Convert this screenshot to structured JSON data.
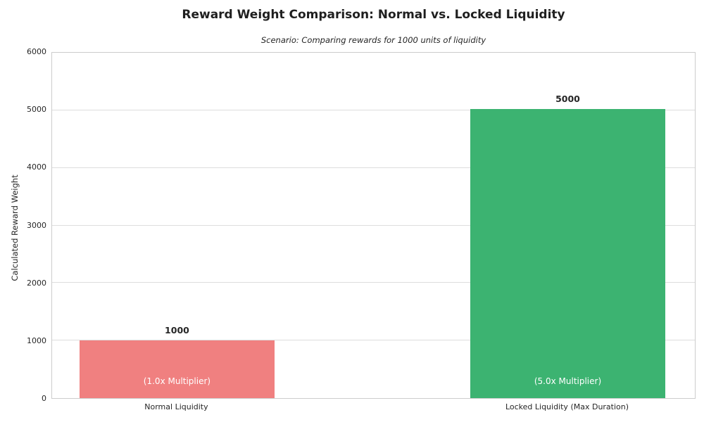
{
  "chart_data": {
    "type": "bar",
    "title": "Reward Weight Comparison: Normal vs. Locked Liquidity",
    "subtitle": "Scenario: Comparing rewards for 1000 units of liquidity",
    "ylabel": "Calculated Reward Weight",
    "xlabel": "",
    "categories": [
      "Normal Liquidity",
      "Locked Liquidity (Max Duration)"
    ],
    "values": [
      1000,
      5000
    ],
    "value_labels": [
      "1000",
      "5000"
    ],
    "bar_inner_labels": [
      "(1.0x Multiplier)",
      "(5.0x Multiplier)"
    ],
    "bar_colors": [
      "#F08080",
      "#3CB371"
    ],
    "ylim": [
      0,
      6000
    ],
    "yticks": [
      0,
      1000,
      2000,
      3000,
      4000,
      5000,
      6000
    ],
    "grid": true,
    "legend_position": "none",
    "colors": {
      "grid": "#dddddd",
      "spine": "#cccccc",
      "text": "#262626",
      "inner_label_text": "#ffffff",
      "background": "#ffffff"
    }
  }
}
